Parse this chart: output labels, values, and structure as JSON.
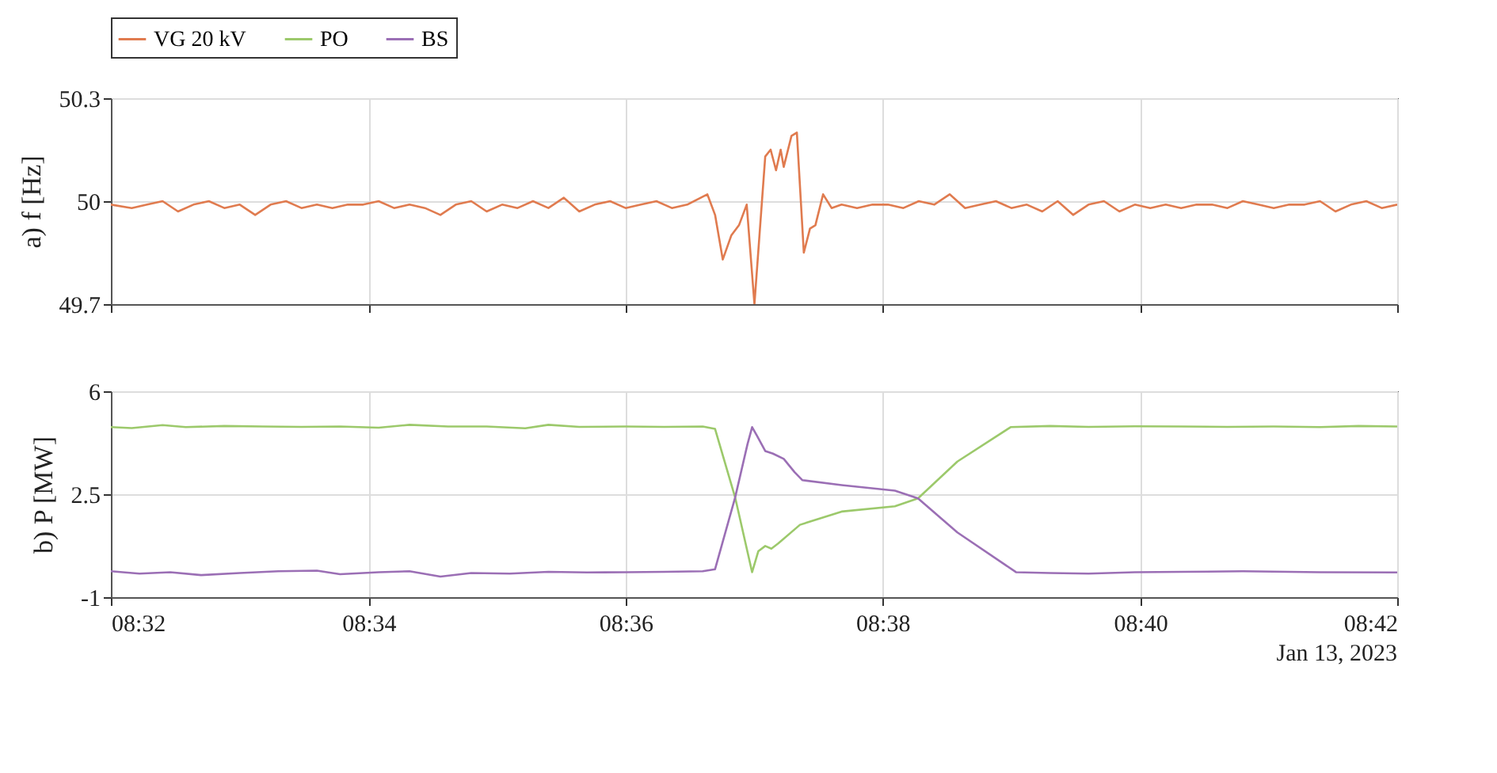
{
  "chart_data": [
    {
      "type": "line",
      "ylabel": "a)  f [Hz]",
      "legend": "top",
      "grid": true,
      "marker": "none",
      "line_style": "solid",
      "tick_labels": "y",
      "xlim": [
        8.5333,
        8.7
      ],
      "xticks": [
        8.5333,
        8.5667,
        8.6,
        8.6333,
        8.6667,
        8.7
      ],
      "ylim": [
        49.7,
        50.3
      ],
      "yticks": [
        49.7,
        50,
        50.3
      ],
      "series": [
        {
          "name": "VG 20 kV",
          "color": "#e07b4f",
          "x": [
            8.5333,
            8.536,
            8.538,
            8.54,
            8.542,
            8.544,
            8.546,
            8.548,
            8.55,
            8.552,
            8.554,
            8.556,
            8.558,
            8.56,
            8.562,
            8.564,
            8.566,
            8.568,
            8.57,
            8.572,
            8.574,
            8.576,
            8.578,
            8.58,
            8.582,
            8.584,
            8.586,
            8.588,
            8.59,
            8.592,
            8.594,
            8.596,
            8.598,
            8.6,
            8.602,
            8.604,
            8.606,
            8.608,
            8.6106,
            8.6116,
            8.6126,
            8.6137,
            8.6147,
            8.6157,
            8.6167,
            8.6181,
            8.6188,
            8.6195,
            8.6201,
            8.6205,
            8.6215,
            8.6222,
            8.6231,
            8.6239,
            8.6246,
            8.6256,
            8.6267,
            8.628,
            8.63,
            8.632,
            8.634,
            8.636,
            8.638,
            8.64,
            8.642,
            8.644,
            8.646,
            8.648,
            8.65,
            8.652,
            8.654,
            8.656,
            8.658,
            8.66,
            8.662,
            8.664,
            8.666,
            8.668,
            8.67,
            8.672,
            8.674,
            8.676,
            8.678,
            8.68,
            8.682,
            8.684,
            8.686,
            8.688,
            8.69,
            8.692,
            8.694,
            8.696,
            8.698,
            8.7
          ],
          "values": [
            49.99,
            49.98,
            49.99,
            50.0,
            49.97,
            49.99,
            50.0,
            49.98,
            49.99,
            49.96,
            49.99,
            50.0,
            49.98,
            49.99,
            49.98,
            49.99,
            49.99,
            50.0,
            49.98,
            49.99,
            49.98,
            49.96,
            49.99,
            50.0,
            49.97,
            49.99,
            49.98,
            50.0,
            49.98,
            50.01,
            49.97,
            49.99,
            50.0,
            49.98,
            49.99,
            50.0,
            49.98,
            49.99,
            50.02,
            49.96,
            49.83,
            49.9,
            49.93,
            49.99,
            49.7,
            50.13,
            50.15,
            50.09,
            50.15,
            50.1,
            50.19,
            50.2,
            49.85,
            49.92,
            49.93,
            50.02,
            49.98,
            49.99,
            49.98,
            49.99,
            49.99,
            49.98,
            50.0,
            49.99,
            50.02,
            49.98,
            49.99,
            50.0,
            49.98,
            49.99,
            49.97,
            50.0,
            49.96,
            49.99,
            50.0,
            49.97,
            49.99,
            49.98,
            49.99,
            49.98,
            49.99,
            49.99,
            49.98,
            50.0,
            49.99,
            49.98,
            49.99,
            49.99,
            50.0,
            49.97,
            49.99,
            50.0,
            49.98,
            49.99
          ]
        }
      ]
    },
    {
      "type": "line",
      "ylabel": "b)  P [MW]",
      "legend": "top",
      "grid": true,
      "marker": "none",
      "line_style": "solid",
      "xlim": [
        8.5333,
        8.7
      ],
      "xticks": [
        {
          "value": 8.5333,
          "label": "08:32"
        },
        {
          "value": 8.5667,
          "label": "08:34"
        },
        {
          "value": 8.6,
          "label": "08:36"
        },
        {
          "value": 8.6333,
          "label": "08:38"
        },
        {
          "value": 8.6667,
          "label": "08:40"
        },
        {
          "value": 8.7,
          "label": "08:42"
        }
      ],
      "ylim": [
        -1,
        6
      ],
      "yticks": [
        -1,
        2.5,
        6
      ],
      "annotations": [
        "Jan 13, 2023"
      ],
      "series": [
        {
          "name": "PO",
          "color": "#9cc96b",
          "x": [
            8.5333,
            8.536,
            8.54,
            8.543,
            8.548,
            8.553,
            8.558,
            8.563,
            8.568,
            8.572,
            8.577,
            8.582,
            8.587,
            8.59,
            8.594,
            8.6,
            8.605,
            8.61,
            8.6116,
            8.6142,
            8.6164,
            8.6172,
            8.6181,
            8.6189,
            8.6198,
            8.6226,
            8.628,
            8.6349,
            8.6379,
            8.643,
            8.6499,
            8.655,
            8.66,
            8.666,
            8.672,
            8.678,
            8.684,
            8.69,
            8.695,
            8.7
          ],
          "values": [
            4.78,
            4.75,
            4.85,
            4.78,
            4.82,
            4.8,
            4.79,
            4.8,
            4.76,
            4.86,
            4.8,
            4.8,
            4.74,
            4.86,
            4.79,
            4.8,
            4.79,
            4.8,
            4.72,
            2.39,
            -0.15,
            0.56,
            0.74,
            0.65,
            0.83,
            1.46,
            1.91,
            2.09,
            2.36,
            3.61,
            4.78,
            4.82,
            4.79,
            4.81,
            4.8,
            4.79,
            4.8,
            4.78,
            4.82,
            4.8
          ]
        },
        {
          "name": "BS",
          "color": "#9b6fb5",
          "x": [
            8.5333,
            8.537,
            8.541,
            8.545,
            8.55,
            8.555,
            8.56,
            8.563,
            8.568,
            8.572,
            8.576,
            8.58,
            8.585,
            8.59,
            8.595,
            8.6,
            8.605,
            8.61,
            8.6116,
            8.6142,
            8.6158,
            8.6164,
            8.617,
            8.6181,
            8.6191,
            8.6205,
            8.6219,
            8.6229,
            8.628,
            8.6349,
            8.6379,
            8.643,
            8.6506,
            8.655,
            8.66,
            8.666,
            8.672,
            8.68,
            8.69,
            8.7
          ],
          "values": [
            -0.12,
            -0.2,
            -0.15,
            -0.25,
            -0.18,
            -0.12,
            -0.1,
            -0.22,
            -0.15,
            -0.12,
            -0.3,
            -0.18,
            -0.2,
            -0.14,
            -0.16,
            -0.15,
            -0.14,
            -0.12,
            -0.05,
            2.39,
            4.2,
            4.78,
            4.5,
            3.97,
            3.88,
            3.7,
            3.25,
            2.98,
            2.81,
            2.62,
            2.36,
            1.2,
            -0.15,
            -0.18,
            -0.2,
            -0.15,
            -0.14,
            -0.12,
            -0.15,
            -0.16
          ]
        }
      ]
    }
  ]
}
